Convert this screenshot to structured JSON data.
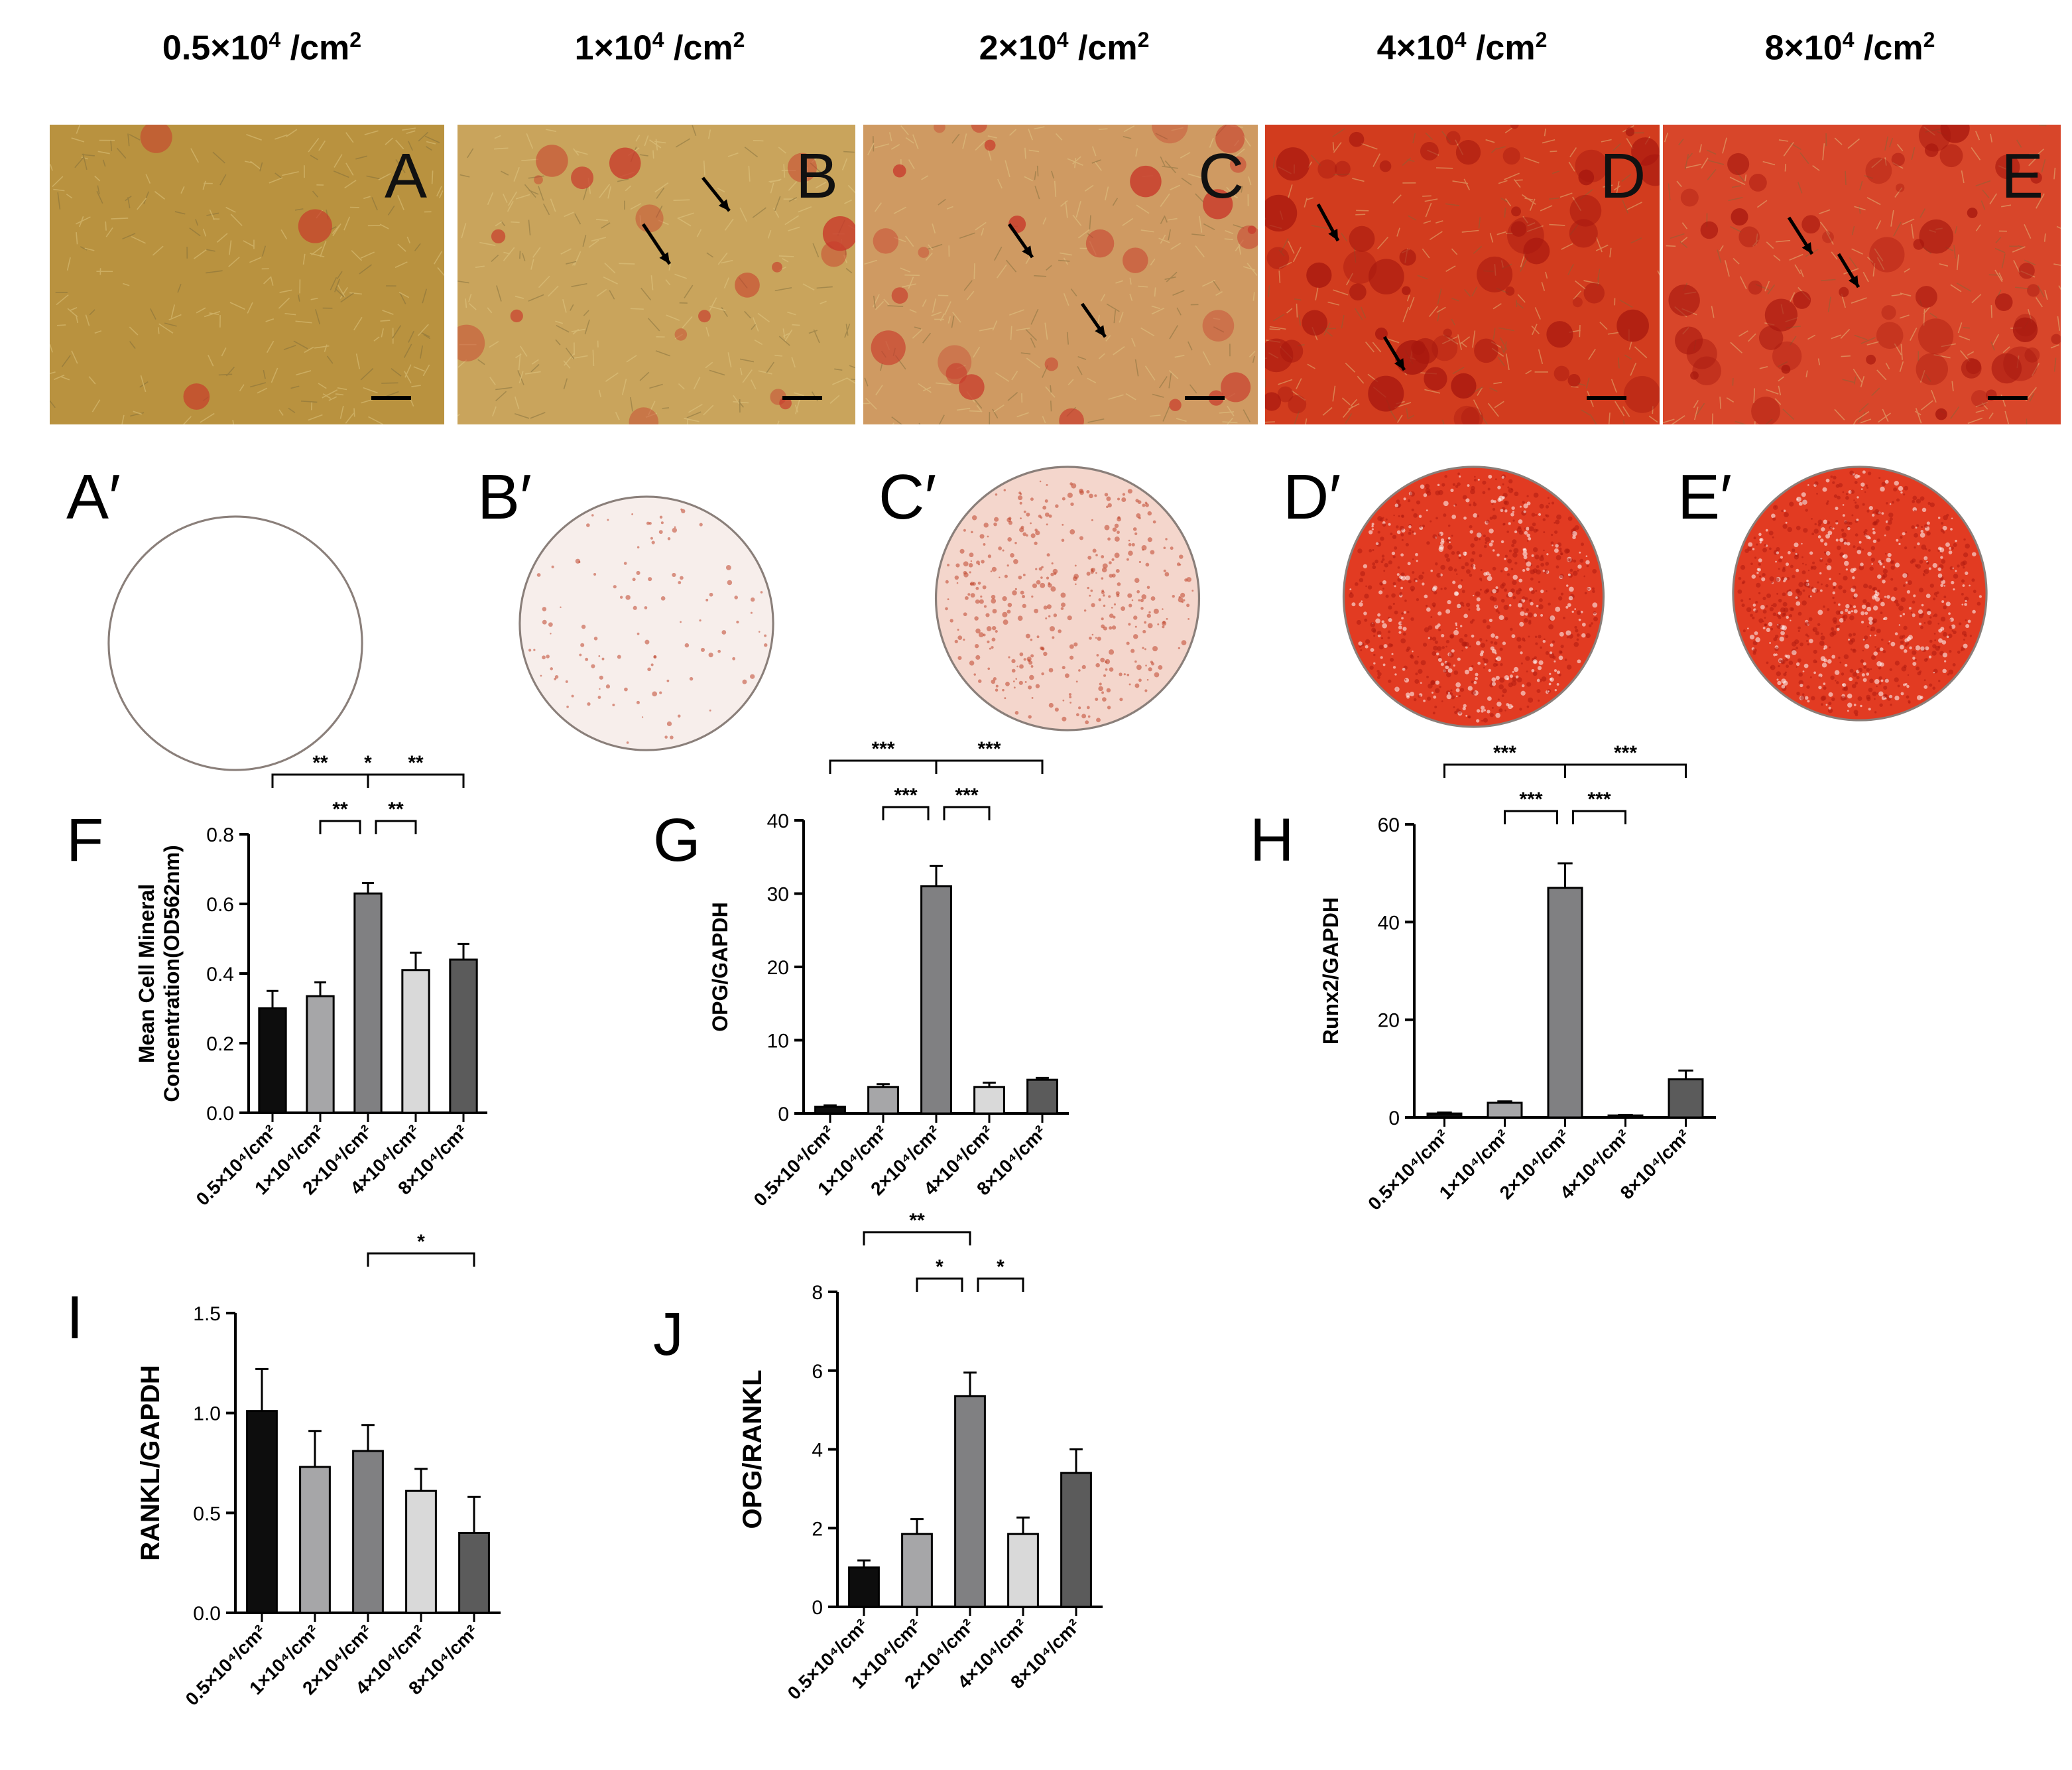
{
  "column_titles": [
    {
      "base": "0.5×10",
      "exp": "4",
      "unit": " /cm",
      "unit_exp": "2"
    },
    {
      "base": "1×10",
      "exp": "4",
      "unit": " /cm",
      "unit_exp": "2"
    },
    {
      "base": "2×10",
      "exp": "4",
      "unit": " /cm",
      "unit_exp": "2"
    },
    {
      "base": "4×10",
      "exp": "4",
      "unit": " /cm",
      "unit_exp": "2"
    },
    {
      "base": "8×10",
      "exp": "4",
      "unit": " /cm",
      "unit_exp": "2"
    }
  ],
  "micro_panels": [
    {
      "label": "A",
      "stain_level": 0.05,
      "color_base": "#b9923f"
    },
    {
      "label": "B",
      "stain_level": 0.3,
      "color_base": "#c9a45c"
    },
    {
      "label": "C",
      "stain_level": 0.45,
      "color_base": "#cf9a62"
    },
    {
      "label": "D",
      "stain_level": 0.95,
      "color_base": "#d23c1e"
    },
    {
      "label": "E",
      "stain_level": 0.9,
      "color_base": "#d8462a"
    }
  ],
  "dish_panels": [
    {
      "label": "A′",
      "stain_level": 0.0
    },
    {
      "label": "B′",
      "stain_level": 0.12
    },
    {
      "label": "C′",
      "stain_level": 0.45
    },
    {
      "label": "D′",
      "stain_level": 0.92
    },
    {
      "label": "E′",
      "stain_level": 0.97
    }
  ],
  "category_labels": [
    "0.5×10⁴/cm²",
    "1×10⁴/cm²",
    "2×10⁴/cm²",
    "4×10⁴/cm²",
    "8×10⁴/cm²"
  ],
  "bar_colors": [
    "#0d0d0d",
    "#a6a6a8",
    "#808082",
    "#d9d9d9",
    "#5b5b5b"
  ],
  "chart_data": [
    {
      "panel": "F",
      "type": "bar",
      "ylabel_lines": [
        "Mean Cell Mineral",
        "Concentration(OD562nm)"
      ],
      "ylim": [
        0,
        0.8
      ],
      "yticks": [
        "0.0",
        "0.2",
        "0.4",
        "0.6",
        "0.8"
      ],
      "values": [
        0.3,
        0.335,
        0.63,
        0.41,
        0.44
      ],
      "errors": [
        0.05,
        0.04,
        0.03,
        0.05,
        0.045
      ],
      "brackets": [
        {
          "from": 0,
          "to": 4,
          "label": "*"
        },
        {
          "from": 0,
          "to": 2,
          "label": "**"
        },
        {
          "from": 2,
          "to": 4,
          "label": "**"
        },
        {
          "from": 1,
          "to": 2,
          "label": "**"
        },
        {
          "from": 2,
          "to": 3,
          "label": "**"
        }
      ]
    },
    {
      "panel": "G",
      "type": "bar",
      "ylabel_lines": [
        "OPG/GAPDH"
      ],
      "ylim": [
        0,
        40
      ],
      "yticks": [
        "0",
        "10",
        "20",
        "30",
        "40"
      ],
      "values": [
        0.9,
        3.6,
        31.0,
        3.6,
        4.6
      ],
      "errors": [
        0.2,
        0.4,
        2.8,
        0.6,
        0.25
      ],
      "brackets": [
        {
          "from": 0,
          "to": 2,
          "label": "***"
        },
        {
          "from": 2,
          "to": 4,
          "label": "***"
        },
        {
          "from": 1,
          "to": 2,
          "label": "***"
        },
        {
          "from": 2,
          "to": 3,
          "label": "***"
        }
      ]
    },
    {
      "panel": "H",
      "type": "bar",
      "ylabel_lines": [
        "Runx2/GAPDH"
      ],
      "ylim": [
        0,
        60
      ],
      "yticks": [
        "0",
        "20",
        "40",
        "60"
      ],
      "values": [
        0.8,
        3.0,
        47.0,
        0.4,
        7.8
      ],
      "errors": [
        0.2,
        0.3,
        5.0,
        0.1,
        1.8
      ],
      "brackets": [
        {
          "from": 0,
          "to": 2,
          "label": "***"
        },
        {
          "from": 2,
          "to": 4,
          "label": "***"
        },
        {
          "from": 1,
          "to": 2,
          "label": "***"
        },
        {
          "from": 2,
          "to": 3,
          "label": "***"
        }
      ]
    },
    {
      "panel": "I",
      "type": "bar",
      "ylabel_lines": [
        "RANKL/GAPDH"
      ],
      "ylim": [
        0,
        1.5
      ],
      "yticks": [
        "0.0",
        "0.5",
        "1.0",
        "1.5"
      ],
      "values": [
        1.01,
        0.73,
        0.81,
        0.61,
        0.4
      ],
      "errors": [
        0.21,
        0.18,
        0.13,
        0.11,
        0.18
      ],
      "brackets": [
        {
          "from": 2,
          "to": 4,
          "label": "*"
        }
      ]
    },
    {
      "panel": "J",
      "type": "bar",
      "ylabel_lines": [
        "OPG/RANKL"
      ],
      "ylim": [
        0,
        8
      ],
      "yticks": [
        "0",
        "2",
        "4",
        "6",
        "8"
      ],
      "values": [
        1.0,
        1.85,
        5.35,
        1.85,
        3.4
      ],
      "errors": [
        0.18,
        0.38,
        0.6,
        0.42,
        0.6
      ],
      "brackets": [
        {
          "from": 0,
          "to": 2,
          "label": "**"
        },
        {
          "from": 1,
          "to": 2,
          "label": "*"
        },
        {
          "from": 2,
          "to": 3,
          "label": "*"
        }
      ]
    }
  ]
}
